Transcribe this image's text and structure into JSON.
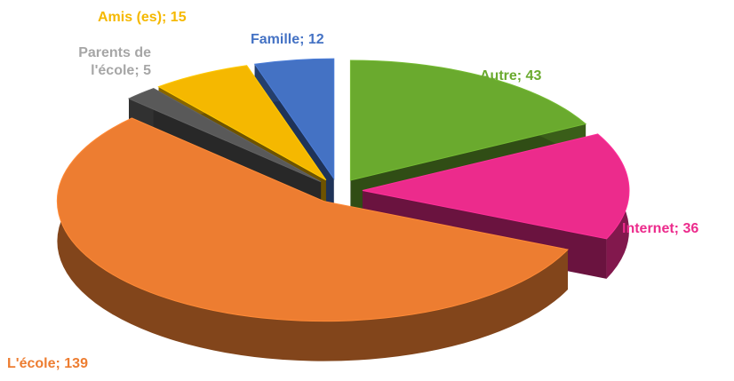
{
  "chart_data": {
    "type": "pie",
    "categories": [
      "Autre",
      "Internet",
      "L'école",
      "Parents de l'école",
      "Amis (es)",
      "Famille"
    ],
    "values": [
      43,
      36,
      139,
      5,
      15,
      12
    ],
    "value_labels": [
      "Autre; 43",
      "Internet; 36",
      "L'école; 139",
      "Parents de l'école; 5",
      "Amis (es); 15",
      "Famille; 12"
    ],
    "colors": [
      "#6aaa2e",
      "#ec2b8c",
      "#ed7d31",
      "#595959",
      "#f5b800",
      "#4472c4"
    ]
  }
}
